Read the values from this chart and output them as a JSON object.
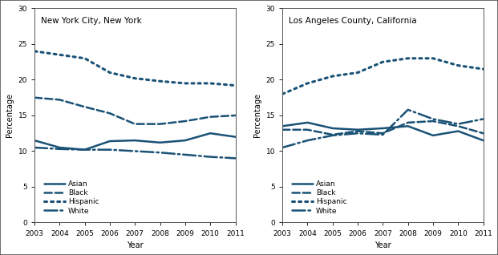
{
  "years": [
    2003,
    2004,
    2005,
    2006,
    2007,
    2008,
    2009,
    2010,
    2011
  ],
  "nyc": {
    "title": "New York City, New York",
    "Asian": [
      11.5,
      10.5,
      10.2,
      11.4,
      11.5,
      11.2,
      11.5,
      12.5,
      12.0
    ],
    "Black": [
      17.5,
      17.2,
      16.2,
      15.3,
      13.8,
      13.8,
      14.2,
      14.8,
      15.0
    ],
    "Hispanic": [
      24.0,
      23.5,
      23.0,
      21.0,
      20.2,
      19.8,
      19.5,
      19.5,
      19.2
    ],
    "White": [
      10.5,
      10.3,
      10.2,
      10.2,
      10.0,
      9.8,
      9.5,
      9.2,
      9.0
    ]
  },
  "la": {
    "title": "Los Angeles County, California",
    "Asian": [
      13.5,
      14.0,
      13.2,
      13.0,
      13.2,
      13.5,
      12.2,
      12.8,
      11.5
    ],
    "Black": [
      13.0,
      13.0,
      12.3,
      12.8,
      12.5,
      14.0,
      14.2,
      13.5,
      12.5
    ],
    "Hispanic": [
      18.0,
      19.5,
      20.5,
      21.0,
      22.5,
      23.0,
      23.0,
      22.0,
      21.5
    ],
    "White": [
      10.5,
      11.5,
      12.2,
      12.5,
      12.3,
      15.8,
      14.5,
      13.8,
      14.5
    ]
  },
  "line_styles": {
    "Asian": {
      "linestyle": "-",
      "linewidth": 1.8,
      "dashes": []
    },
    "Black": {
      "linestyle": "--",
      "linewidth": 1.8,
      "dashes": [
        6,
        3
      ]
    },
    "Hispanic": {
      "linestyle": ":",
      "linewidth": 2.2,
      "dashes": [
        1.5,
        2
      ]
    },
    "White": {
      "linestyle": "-.",
      "linewidth": 1.8,
      "dashes": [
        6,
        2,
        1.5,
        2
      ]
    }
  },
  "color": "#1a5276",
  "ylim": [
    0,
    30
  ],
  "yticks": [
    0,
    5,
    10,
    15,
    20,
    25,
    30
  ],
  "ylabel": "Percentage",
  "xlabel": "Year",
  "legend_order": [
    "Asian",
    "Black",
    "Hispanic",
    "White"
  ],
  "legend_fontsize": 6.5,
  "title_fontsize": 7.5,
  "axis_fontsize": 7,
  "tick_fontsize": 6.5
}
